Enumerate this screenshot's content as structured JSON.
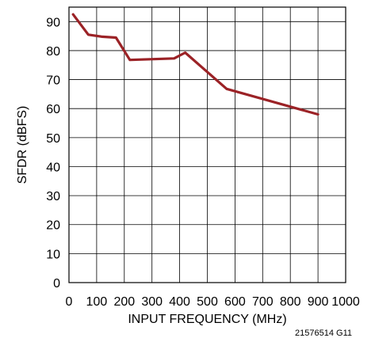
{
  "chart_data": {
    "type": "line",
    "xlabel": "INPUT FREQUENCY (MHz)",
    "ylabel": "SFDR (dBFS)",
    "xlim": [
      0,
      1000
    ],
    "ylim": [
      0,
      95
    ],
    "x_ticks": [
      0,
      100,
      200,
      300,
      400,
      500,
      600,
      700,
      800,
      900,
      1000
    ],
    "y_ticks": [
      0,
      10,
      20,
      30,
      40,
      50,
      60,
      70,
      80,
      90
    ],
    "grid": true,
    "series": [
      {
        "color": "#9b2226",
        "x": [
          15,
          70,
          120,
          170,
          220,
          380,
          420,
          570,
          900
        ],
        "y": [
          92.5,
          85.5,
          84.8,
          84.5,
          76.8,
          77.3,
          79.3,
          66.8,
          58
        ]
      }
    ],
    "figure_id": "21576514 G11"
  }
}
